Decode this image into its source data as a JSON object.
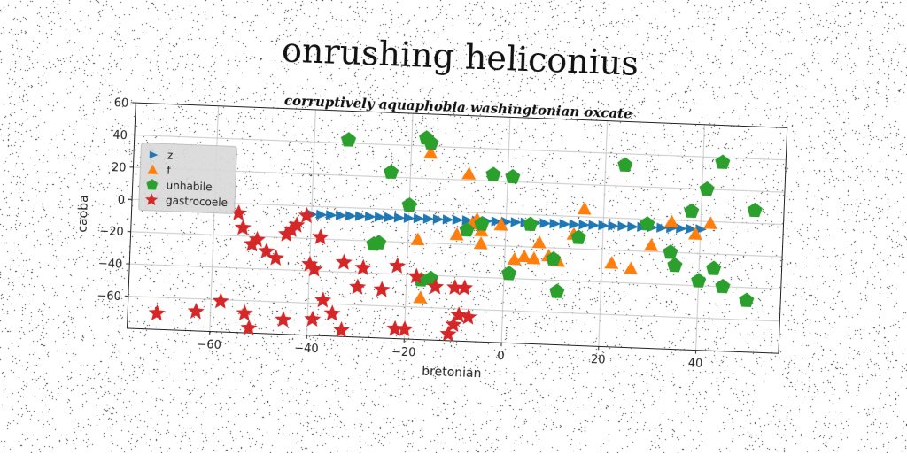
{
  "chart_data": {
    "type": "scatter",
    "title": "onrushing heliconius",
    "subtitle": "corruptively aquaphobia washingtonian oxcate",
    "xlabel": "bretonian",
    "ylabel": "caoba",
    "xlim": [
      -77,
      57
    ],
    "ylim": [
      -80,
      60
    ],
    "xticks": [
      -60,
      -40,
      -20,
      0,
      20,
      40
    ],
    "yticks": [
      -60,
      -40,
      -20,
      0,
      20,
      40,
      60
    ],
    "grid": true,
    "legend_position": "center-left",
    "series": [
      {
        "name": "z",
        "marker": "triangle-right",
        "color": "#1f77b4",
        "x": [
          -40,
          -38,
          -36,
          -34,
          -32,
          -30,
          -28,
          -26,
          -24,
          -22,
          -20,
          -18,
          -16,
          -14,
          -12,
          -10,
          -8,
          -6,
          -4,
          -2,
          0,
          2,
          4,
          6,
          8,
          10,
          12,
          14,
          16,
          18,
          20,
          22,
          24,
          26,
          28,
          30,
          32,
          34,
          36,
          38,
          40
        ],
        "y": [
          -5,
          -5,
          -5,
          -5,
          -5,
          -5,
          -5,
          -5,
          -5,
          -5,
          -5,
          -5,
          -5,
          -5,
          -5,
          -5,
          -5,
          -5,
          -5,
          -5,
          -5,
          -5,
          -5,
          -5,
          -5,
          -5,
          -5,
          -5,
          -5,
          -5,
          -5,
          -5,
          -5,
          -5,
          -5,
          -5,
          -5,
          -5,
          -5,
          -5,
          -5
        ]
      },
      {
        "name": "f",
        "marker": "triangle-up",
        "color": "#ff7f0e",
        "x": [
          -16,
          -8,
          -6,
          -5,
          -18,
          -10,
          -7,
          -5,
          -1,
          2,
          6,
          7,
          9,
          11,
          14,
          16,
          22,
          26,
          30,
          34,
          39,
          42,
          -17,
          4
        ],
        "y": [
          36,
          24,
          -4,
          -11,
          -18,
          -14,
          -7,
          -19,
          -7,
          -28,
          -27,
          -17,
          -25,
          -28,
          -11,
          5,
          -28,
          -31,
          -16,
          -1,
          -8,
          -1,
          -54,
          -26
        ]
      },
      {
        "name": "unhabile",
        "marker": "pentagon",
        "color": "#2ca02c",
        "x": [
          -33,
          -24,
          -20,
          -17,
          -16,
          -15,
          -27,
          -26,
          -8,
          -3,
          1,
          -5,
          5,
          10,
          11,
          24,
          15,
          29,
          38,
          41,
          44,
          51,
          34,
          35,
          40,
          43,
          45,
          50,
          1,
          -17
        ],
        "y": [
          42,
          23,
          3,
          45,
          42,
          -42,
          -22,
          -21,
          -11,
          24,
          23,
          -7,
          -6,
          -27,
          -47,
          33,
          -13,
          -3,
          6,
          20,
          37,
          8,
          -20,
          -28,
          -37,
          -29,
          -40,
          -48,
          -37,
          -43
        ]
      },
      {
        "name": "gastrocoele",
        "marker": "star",
        "color": "#d62728",
        "x": [
          -55,
          -54,
          -52,
          -51,
          -49,
          -47,
          -45,
          -44,
          -43,
          -41,
          -40,
          -39,
          -38,
          -37,
          -35,
          -33,
          -30,
          -25,
          -22,
          -20,
          -18,
          -14,
          -10,
          -9,
          -8,
          -7,
          -71,
          -63,
          -58,
          -53,
          -52,
          -45,
          -39,
          -33,
          -29,
          -22,
          -11,
          -10
        ],
        "y": [
          -6,
          -15,
          -25,
          -22,
          -29,
          -33,
          -18,
          -15,
          -12,
          -6,
          -36,
          -39,
          -19,
          -58,
          -66,
          -34,
          -49,
          -50,
          -35,
          -74,
          -41,
          -47,
          -47,
          -64,
          -47,
          -65,
          -70,
          -68,
          -61,
          -68,
          -77,
          -71,
          -70,
          -76,
          -37,
          -74,
          -76,
          -70
        ]
      }
    ]
  }
}
